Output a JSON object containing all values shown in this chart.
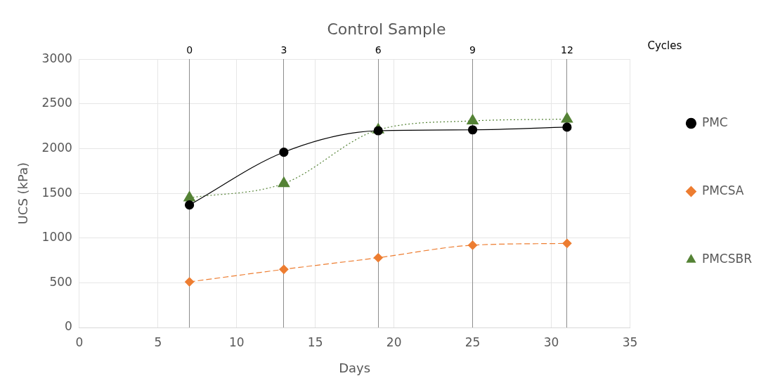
{
  "chart_data": {
    "type": "line",
    "title": "Control Sample",
    "xlabel": "Days",
    "ylabel": "UCS (kPa)",
    "x2label": "Cycles",
    "x": [
      7,
      13,
      19,
      25,
      31
    ],
    "series": [
      {
        "name": "PMC",
        "color": "#000000",
        "marker": "circle",
        "line_style": "solid",
        "values": [
          1370,
          1960,
          2200,
          2210,
          2240
        ]
      },
      {
        "name": "PMCSA",
        "color": "#ed7d31",
        "marker": "diamond",
        "line_style": "dashed",
        "values": [
          510,
          650,
          780,
          920,
          940
        ]
      },
      {
        "name": "PMCSBR",
        "color": "#548235",
        "marker": "triangle",
        "line_style": "dotted",
        "values": [
          1450,
          1610,
          2210,
          2310,
          2330
        ]
      }
    ],
    "xlim": [
      0,
      35
    ],
    "xticks": [
      0,
      5,
      10,
      15,
      20,
      25,
      30,
      35
    ],
    "x2lim": [
      -3.5,
      14
    ],
    "x2ticks": [
      0,
      3,
      6,
      9,
      12
    ],
    "ylim": [
      0,
      3000
    ],
    "yticks": [
      0,
      500,
      1000,
      1500,
      2000,
      2500,
      3000
    ],
    "grid": true,
    "legend": "right"
  }
}
